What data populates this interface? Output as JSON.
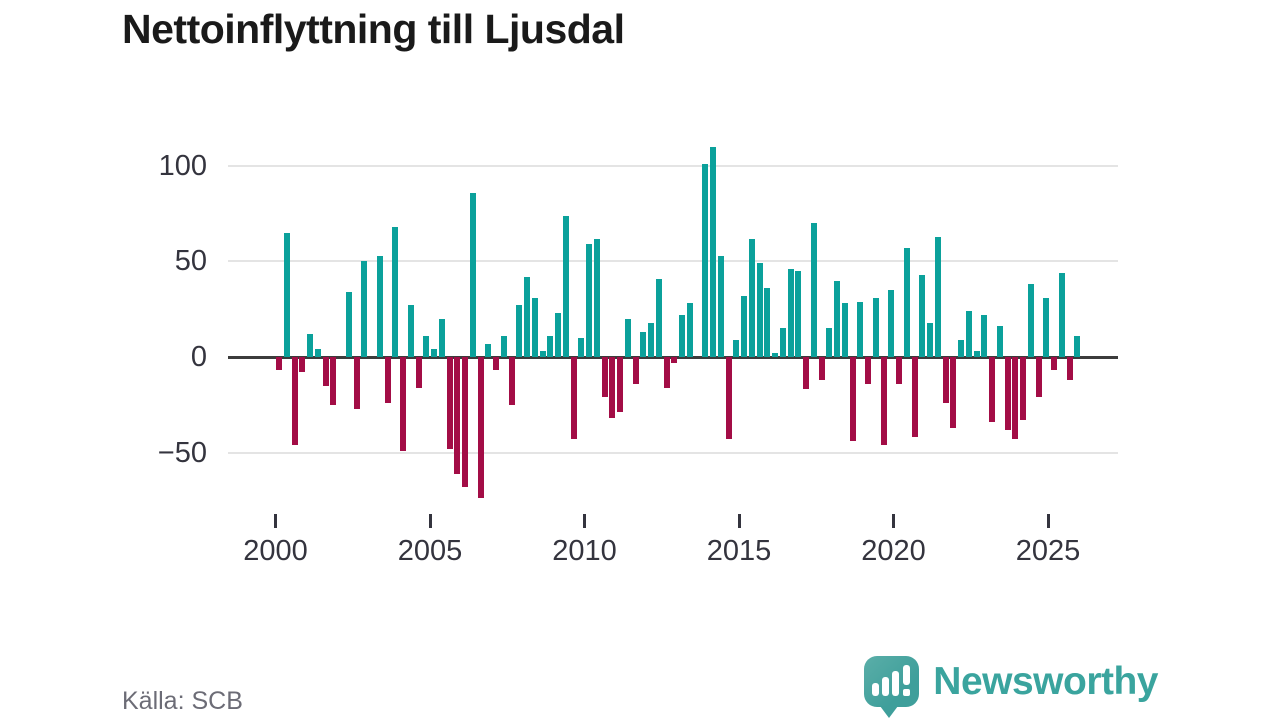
{
  "title": "Nettoinflyttning till Ljusdal",
  "source": "Källa: SCB",
  "brand": {
    "name": "Newsworthy",
    "icon": "speech-bubble-bar-chart-icon"
  },
  "colors": {
    "positive": "#0ba19b",
    "negative": "#a30d46",
    "grid": "#e4e4e4",
    "zero_line": "#3c3c3c",
    "axis_text": "#34343e",
    "brand_teal": "#3aa49e"
  },
  "chart_data": {
    "type": "bar",
    "title": "Nettoinflyttning till Ljusdal",
    "frequency": "quarterly",
    "start_year": 2000,
    "values": [
      -7,
      65,
      -46,
      -8,
      12,
      4,
      -15,
      -25,
      0,
      34,
      -27,
      50,
      0,
      53,
      -24,
      68,
      -49,
      27,
      -16,
      11,
      4,
      20,
      -48,
      -61,
      -68,
      86,
      -74,
      7,
      -7,
      11,
      -25,
      27,
      42,
      31,
      3,
      11,
      23,
      74,
      -43,
      10,
      59,
      62,
      -21,
      -32,
      -29,
      20,
      -14,
      13,
      18,
      41,
      -16,
      -3,
      22,
      28,
      0,
      101,
      110,
      53,
      -43,
      9,
      32,
      62,
      49,
      36,
      2,
      15,
      46,
      45,
      -17,
      70,
      -12,
      15,
      40,
      28,
      -44,
      29,
      -14,
      31,
      -46,
      35,
      -14,
      57,
      -42,
      43,
      18,
      63,
      -24,
      -37,
      9,
      24,
      3,
      22,
      -34,
      16,
      -38,
      -43,
      -33,
      38,
      -21,
      31,
      -7,
      44,
      -12,
      11
    ],
    "y_ticks": [
      100,
      50,
      0,
      -50
    ],
    "y_tick_labels": [
      "100",
      "50",
      "0",
      "−50"
    ],
    "x_tick_labels": [
      "2000",
      "2005",
      "2010",
      "2015",
      "2020",
      "2025"
    ],
    "ylim": [
      -80,
      115
    ],
    "grid": true,
    "legend": "none"
  }
}
